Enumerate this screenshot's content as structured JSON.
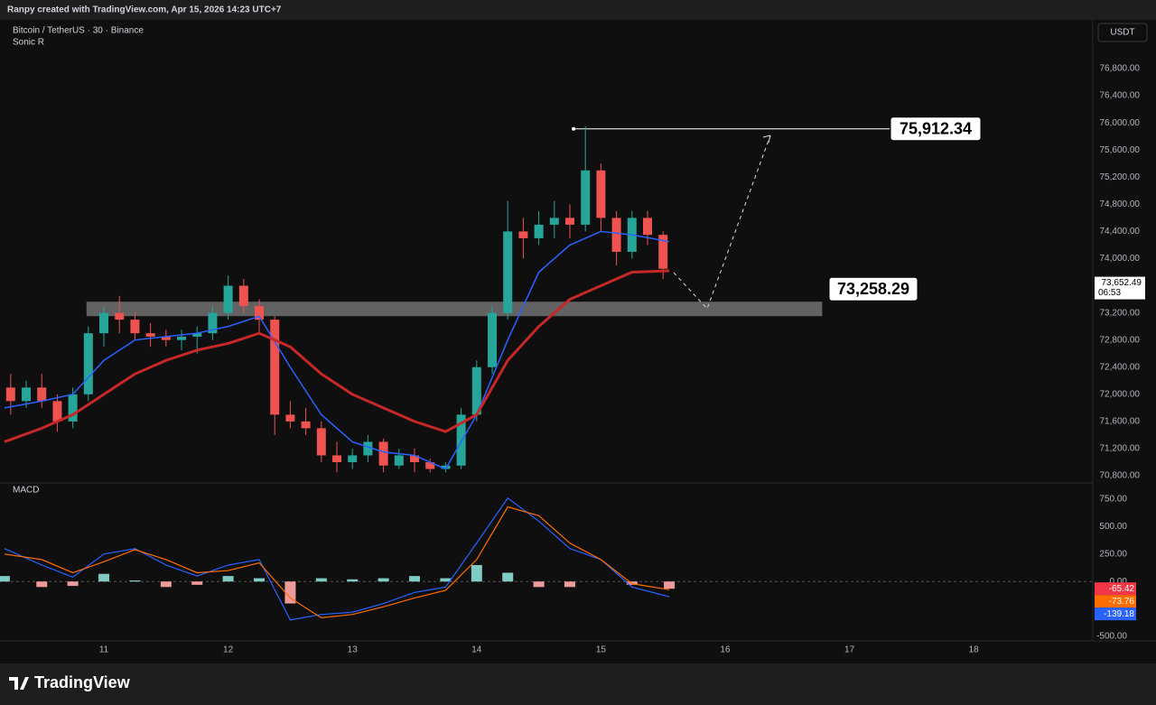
{
  "header": {
    "credit": "Ranpy created with TradingView.com, Apr 15, 2026 14:23 UTC+7",
    "symbol": "Bitcoin / TetherUS · 30 · Binance",
    "indicator": "Sonic R",
    "currency": "USDT",
    "logo": "TradingView"
  },
  "chart_data": {
    "type": "candlestick",
    "up_color": "#26a69a",
    "down_color": "#ef5350",
    "xlim": [
      10.164,
      18.958
    ],
    "xticks": [
      11,
      12,
      13,
      14,
      15,
      16,
      17,
      18
    ],
    "ylim": [
      70694,
      77505
    ],
    "yticks": [
      {
        "value": 76800,
        "label": "76,800.00"
      },
      {
        "value": 76400,
        "label": "76,400.00"
      },
      {
        "value": 76000,
        "label": "76,000.00"
      },
      {
        "value": 75600,
        "label": "75,600.00"
      },
      {
        "value": 75200,
        "label": "75,200.00"
      },
      {
        "value": 74800,
        "label": "74,800.00"
      },
      {
        "value": 74400,
        "label": "74,400.00"
      },
      {
        "value": 74000,
        "label": "74,000.00"
      },
      {
        "value": 73200,
        "label": "73,200.00"
      },
      {
        "value": 72800,
        "label": "72,800.00"
      },
      {
        "value": 72400,
        "label": "72,400.00"
      },
      {
        "value": 72000,
        "label": "72,000.00"
      },
      {
        "value": 71600,
        "label": "71,600.00"
      },
      {
        "value": 71200,
        "label": "71,200.00"
      },
      {
        "value": 70800,
        "label": "70,800.00"
      }
    ],
    "x": [
      10.25,
      10.375,
      10.5,
      10.625,
      10.75,
      10.875,
      11.0,
      11.125,
      11.25,
      11.375,
      11.5,
      11.625,
      11.75,
      11.875,
      12.0,
      12.125,
      12.25,
      12.375,
      12.5,
      12.625,
      12.75,
      12.875,
      13.0,
      13.125,
      13.25,
      13.375,
      13.5,
      13.625,
      13.75,
      13.875,
      14.0,
      14.125,
      14.25,
      14.375,
      14.5,
      14.625,
      14.75,
      14.875,
      15.0,
      15.125,
      15.25,
      15.375,
      15.5
    ],
    "open": [
      72100,
      71900,
      72100,
      71900,
      71600,
      72000,
      72900,
      73200,
      73100,
      72900,
      72850,
      72800,
      72850,
      72900,
      73200,
      73600,
      73300,
      73100,
      71700,
      71600,
      71500,
      71100,
      71000,
      71100,
      71300,
      70950,
      71100,
      71000,
      70900,
      70950,
      71700,
      72400,
      73200,
      74400,
      74300,
      74500,
      74600,
      74500,
      75300,
      74600,
      74100,
      74600,
      74350
    ],
    "high": [
      72300,
      72200,
      72300,
      72000,
      72100,
      73000,
      73300,
      73450,
      73200,
      73050,
      72950,
      72950,
      73000,
      73300,
      73750,
      73700,
      73400,
      73150,
      71900,
      71800,
      71600,
      71300,
      71200,
      71400,
      71350,
      71200,
      71200,
      71050,
      71000,
      71800,
      72500,
      73300,
      74850,
      74600,
      74700,
      74850,
      74800,
      75950,
      75400,
      74700,
      74700,
      74700,
      74400
    ],
    "low": [
      71700,
      71800,
      71800,
      71450,
      71500,
      71900,
      72700,
      72900,
      72800,
      72700,
      72700,
      72650,
      72600,
      72800,
      73100,
      73200,
      72900,
      71400,
      71500,
      71400,
      71000,
      70850,
      70900,
      71000,
      70850,
      70900,
      70850,
      70850,
      70850,
      70900,
      71600,
      72300,
      73100,
      74000,
      74200,
      74300,
      74300,
      74400,
      74400,
      73900,
      74000,
      74200,
      73700
    ],
    "close": [
      71900,
      72100,
      71900,
      71600,
      72000,
      72900,
      73200,
      73100,
      72900,
      72850,
      72800,
      72850,
      72900,
      73200,
      73600,
      73300,
      73100,
      71700,
      71600,
      71500,
      71100,
      71000,
      71100,
      71300,
      70950,
      71100,
      71000,
      70900,
      70950,
      71700,
      72400,
      73200,
      74400,
      74300,
      74500,
      74600,
      74500,
      75300,
      74600,
      74100,
      74600,
      74350,
      73850
    ],
    "ma_x": [
      10.2,
      10.5,
      10.75,
      11.0,
      11.25,
      11.5,
      11.75,
      12.0,
      12.25,
      12.5,
      12.75,
      13.0,
      13.25,
      13.5,
      13.75,
      14.0,
      14.25,
      14.5,
      14.75,
      15.0,
      15.25,
      15.55
    ],
    "ma": [
      {
        "color": "#2962ff",
        "values": [
          71800,
          71900,
          72000,
          72500,
          72800,
          72850,
          72900,
          73000,
          73150,
          72400,
          71700,
          71300,
          71150,
          71100,
          70900,
          71700,
          72800,
          73800,
          74200,
          74400,
          74350,
          74250
        ]
      },
      {
        "color": "#c62828",
        "values": [
          71300,
          71500,
          71700,
          72000,
          72300,
          72500,
          72650,
          72750,
          72900,
          72700,
          72300,
          72000,
          71800,
          71600,
          71450,
          71700,
          72500,
          73000,
          73400,
          73600,
          73800,
          73820
        ]
      }
    ],
    "levels": [
      {
        "value": 75912.34,
        "label": "75,912.34",
        "from": 14.78,
        "to": 16.35
      },
      {
        "value": 73258.29,
        "label": "73,258.29",
        "from": 10.86,
        "to": 16.78
      }
    ],
    "last_price": {
      "value": 73652.49,
      "label": "73,652.49",
      "countdown": "06:53"
    },
    "macd": {
      "title": "MACD",
      "ylim": [
        -541,
        898
      ],
      "yticks": [
        {
          "value": 750,
          "label": "750.00"
        },
        {
          "value": 500,
          "label": "500.00"
        },
        {
          "value": 250,
          "label": "250.00"
        },
        {
          "value": 0,
          "label": "0.00"
        },
        {
          "value": -500,
          "label": "-500.00"
        }
      ],
      "histogram": [
        50,
        -50,
        -40,
        70,
        10,
        -50,
        -30,
        50,
        30,
        -200,
        30,
        20,
        30,
        50,
        30,
        150,
        80,
        -50,
        -50,
        0,
        -30,
        -65.42
      ],
      "macd_line": {
        "color": "#2962ff",
        "values": [
          300,
          150,
          40,
          250,
          300,
          150,
          50,
          150,
          200,
          -350,
          -300,
          -280,
          -200,
          -100,
          -50,
          350,
          760,
          550,
          300,
          200,
          -50,
          -139.18
        ]
      },
      "signal_line": {
        "color": "#ff6d00",
        "values": [
          250,
          200,
          80,
          180,
          290,
          200,
          80,
          100,
          170,
          -150,
          -330,
          -300,
          -230,
          -150,
          -80,
          200,
          680,
          600,
          350,
          200,
          -20,
          -73.76
        ]
      },
      "last_values": [
        {
          "value": -65.42,
          "label": "-65.42",
          "color": "#f23645"
        },
        {
          "value": -73.76,
          "label": "-73.76",
          "color": "#ff6d00"
        },
        {
          "value": -139.18,
          "label": "-139.18",
          "color": "#2962ff"
        }
      ]
    }
  }
}
